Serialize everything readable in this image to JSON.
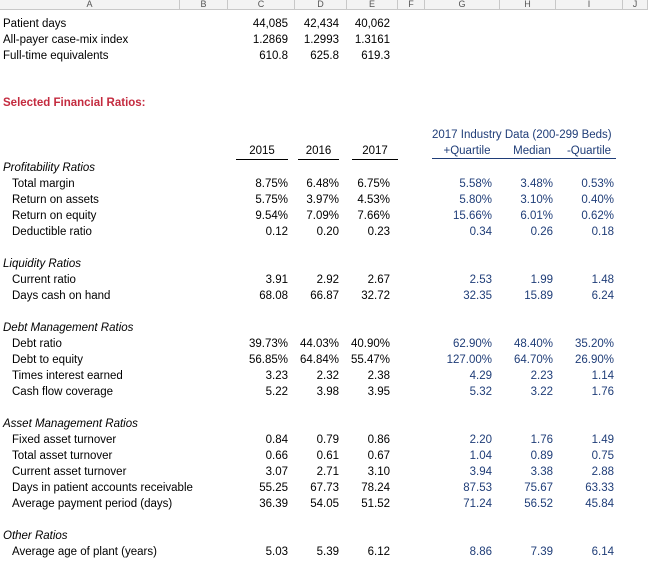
{
  "columns": [
    "A",
    "B",
    "C",
    "D",
    "E",
    "F",
    "G",
    "H",
    "I",
    "J"
  ],
  "stats": [
    {
      "label": "Patient days",
      "v": [
        "44,085",
        "42,434",
        "40,062"
      ]
    },
    {
      "label": "All-payer case-mix index",
      "v": [
        "1.2869",
        "1.2993",
        "1.3161"
      ]
    },
    {
      "label": "Full-time equivalents",
      "v": [
        "610.8",
        "625.8",
        "619.3"
      ]
    }
  ],
  "section_title": "Selected Financial Ratios:",
  "industry_title": "2017 Industry Data (200-299 Beds)",
  "years": [
    "2015",
    "2016",
    "2017"
  ],
  "industry_headers": [
    "+Quartile",
    "Median",
    "-Quartile"
  ],
  "groups": [
    {
      "name": "Profitability Ratios",
      "rows": [
        {
          "label": "Total margin",
          "v": [
            "8.75%",
            "6.48%",
            "6.75%"
          ],
          "ind": [
            "5.58%",
            "3.48%",
            "0.53%"
          ]
        },
        {
          "label": "Return on assets",
          "v": [
            "5.75%",
            "3.97%",
            "4.53%"
          ],
          "ind": [
            "5.80%",
            "3.10%",
            "0.40%"
          ]
        },
        {
          "label": "Return on equity",
          "v": [
            "9.54%",
            "7.09%",
            "7.66%"
          ],
          "ind": [
            "15.66%",
            "6.01%",
            "0.62%"
          ]
        },
        {
          "label": "Deductible ratio",
          "v": [
            "0.12",
            "0.20",
            "0.23"
          ],
          "ind": [
            "0.34",
            "0.26",
            "0.18"
          ]
        }
      ]
    },
    {
      "name": "Liquidity Ratios",
      "rows": [
        {
          "label": "Current ratio",
          "v": [
            "3.91",
            "2.92",
            "2.67"
          ],
          "ind": [
            "2.53",
            "1.99",
            "1.48"
          ]
        },
        {
          "label": "Days cash on hand",
          "v": [
            "68.08",
            "66.87",
            "32.72"
          ],
          "ind": [
            "32.35",
            "15.89",
            "6.24"
          ]
        }
      ]
    },
    {
      "name": "Debt Management Ratios",
      "rows": [
        {
          "label": "Debt ratio",
          "v": [
            "39.73%",
            "44.03%",
            "40.90%"
          ],
          "ind": [
            "62.90%",
            "48.40%",
            "35.20%"
          ]
        },
        {
          "label": "Debt to equity",
          "v": [
            "56.85%",
            "64.84%",
            "55.47%"
          ],
          "ind": [
            "127.00%",
            "64.70%",
            "26.90%"
          ]
        },
        {
          "label": "Times interest earned",
          "v": [
            "3.23",
            "2.32",
            "2.38"
          ],
          "ind": [
            "4.29",
            "2.23",
            "1.14"
          ]
        },
        {
          "label": "Cash flow coverage",
          "v": [
            "5.22",
            "3.98",
            "3.95"
          ],
          "ind": [
            "5.32",
            "3.22",
            "1.76"
          ]
        }
      ]
    },
    {
      "name": "Asset Management Ratios",
      "rows": [
        {
          "label": "Fixed asset turnover",
          "v": [
            "0.84",
            "0.79",
            "0.86"
          ],
          "ind": [
            "2.20",
            "1.76",
            "1.49"
          ]
        },
        {
          "label": "Total asset turnover",
          "v": [
            "0.66",
            "0.61",
            "0.67"
          ],
          "ind": [
            "1.04",
            "0.89",
            "0.75"
          ]
        },
        {
          "label": "Current asset turnover",
          "v": [
            "3.07",
            "2.71",
            "3.10"
          ],
          "ind": [
            "3.94",
            "3.38",
            "2.88"
          ]
        },
        {
          "label": "Days in patient accounts receivable",
          "v": [
            "55.25",
            "67.73",
            "78.24"
          ],
          "ind": [
            "87.53",
            "75.67",
            "63.33"
          ]
        },
        {
          "label": "Average payment period (days)",
          "v": [
            "36.39",
            "54.05",
            "51.52"
          ],
          "ind": [
            "71.24",
            "56.52",
            "45.84"
          ]
        }
      ]
    },
    {
      "name": "Other Ratios",
      "rows": [
        {
          "label": "Average age of plant (years)",
          "v": [
            "5.03",
            "5.39",
            "6.12"
          ],
          "ind": [
            "8.86",
            "7.39",
            "6.14"
          ]
        }
      ]
    }
  ]
}
